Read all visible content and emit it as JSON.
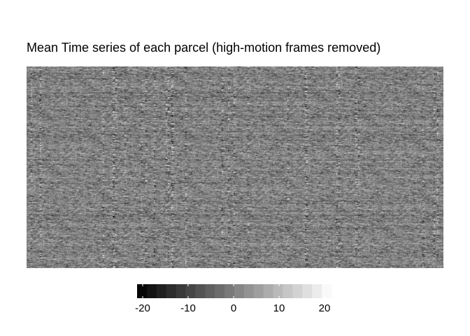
{
  "chart_data": {
    "type": "heatmap",
    "title": "Mean Time series of each parcel (high-motion frames removed)",
    "xlabel": "",
    "ylabel": "",
    "colorscale": {
      "low_color": "#000000",
      "high_color": "#ffffff",
      "range": [
        -20,
        20
      ],
      "ticks": [
        -20,
        -10,
        0,
        10,
        20
      ],
      "tick_labels": [
        "-20",
        "-10",
        "0",
        "10",
        "20"
      ],
      "position": "bottom"
    },
    "grid": false
  }
}
